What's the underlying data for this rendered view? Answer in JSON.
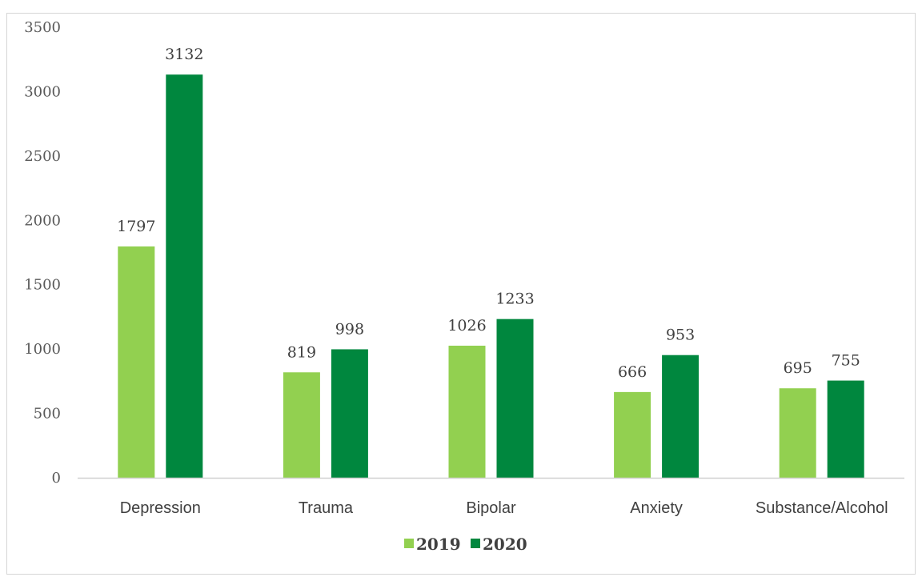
{
  "chart_data": {
    "type": "bar",
    "title": "",
    "xlabel": "",
    "ylabel": "",
    "categories": [
      "Depression",
      "Trauma",
      "Bipolar",
      "Anxiety",
      "Substance/Alcohol"
    ],
    "series": [
      {
        "name": "2019",
        "color": "#92d050",
        "values": [
          1797,
          819,
          1026,
          666,
          695
        ]
      },
      {
        "name": "2020",
        "color": "#00873e",
        "values": [
          3132,
          998,
          1233,
          953,
          755
        ]
      }
    ],
    "ylim": [
      0,
      3500
    ],
    "yticks": [
      0,
      500,
      1000,
      1500,
      2000,
      2500,
      3000,
      3500
    ],
    "grid": false,
    "legend_position": "bottom"
  }
}
